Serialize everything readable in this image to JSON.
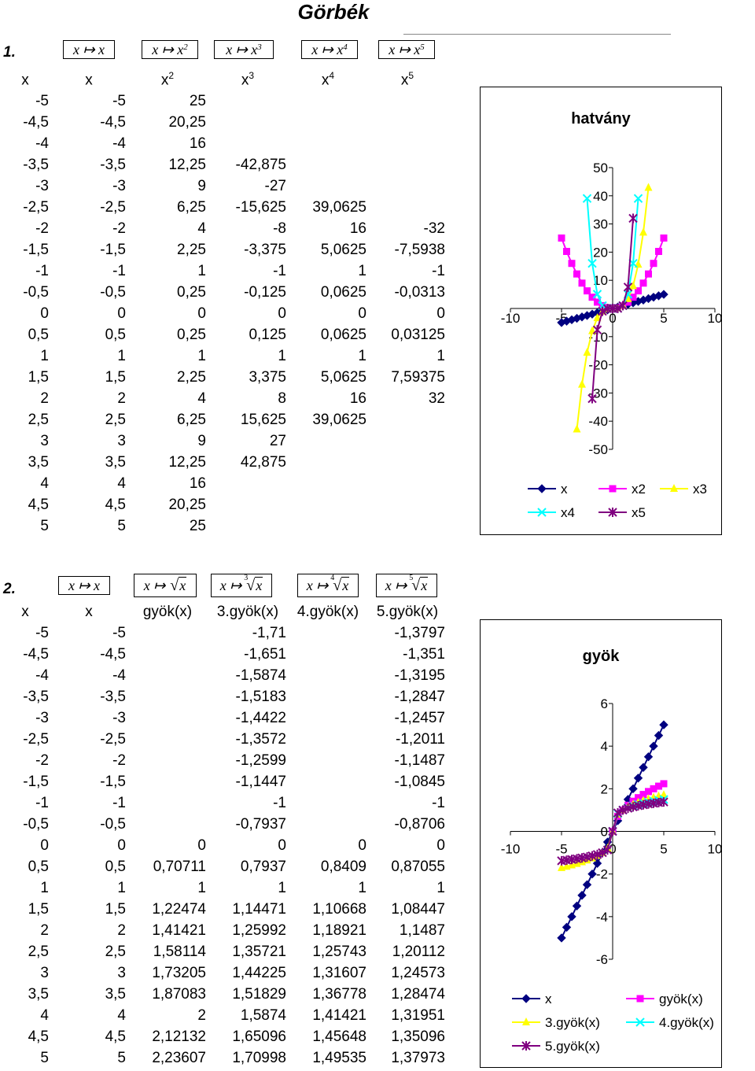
{
  "title": "Görbék",
  "section1": {
    "label": "1.",
    "formulas": [
      {
        "pre": "x ↦ x",
        "exp": ""
      },
      {
        "pre": "x ↦ x",
        "exp": "2"
      },
      {
        "pre": "x ↦ x",
        "exp": "3"
      },
      {
        "pre": "x ↦ x",
        "exp": "4"
      },
      {
        "pre": "x ↦ x",
        "exp": "5"
      }
    ],
    "headers": [
      {
        "base": "x",
        "sup": ""
      },
      {
        "base": "x",
        "sup": ""
      },
      {
        "base": "x",
        "sup": "2"
      },
      {
        "base": "x",
        "sup": "3"
      },
      {
        "base": "x",
        "sup": "4"
      },
      {
        "base": "x",
        "sup": "5"
      }
    ],
    "rows": [
      [
        "-5",
        "-5",
        "25",
        "",
        "",
        ""
      ],
      [
        "-4,5",
        "-4,5",
        "20,25",
        "",
        "",
        ""
      ],
      [
        "-4",
        "-4",
        "16",
        "",
        "",
        ""
      ],
      [
        "-3,5",
        "-3,5",
        "12,25",
        "-42,875",
        "",
        ""
      ],
      [
        "-3",
        "-3",
        "9",
        "-27",
        "",
        ""
      ],
      [
        "-2,5",
        "-2,5",
        "6,25",
        "-15,625",
        "39,0625",
        ""
      ],
      [
        "-2",
        "-2",
        "4",
        "-8",
        "16",
        "-32"
      ],
      [
        "-1,5",
        "-1,5",
        "2,25",
        "-3,375",
        "5,0625",
        "-7,5938"
      ],
      [
        "-1",
        "-1",
        "1",
        "-1",
        "1",
        "-1"
      ],
      [
        "-0,5",
        "-0,5",
        "0,25",
        "-0,125",
        "0,0625",
        "-0,0313"
      ],
      [
        "0",
        "0",
        "0",
        "0",
        "0",
        "0"
      ],
      [
        "0,5",
        "0,5",
        "0,25",
        "0,125",
        "0,0625",
        "0,03125"
      ],
      [
        "1",
        "1",
        "1",
        "1",
        "1",
        "1"
      ],
      [
        "1,5",
        "1,5",
        "2,25",
        "3,375",
        "5,0625",
        "7,59375"
      ],
      [
        "2",
        "2",
        "4",
        "8",
        "16",
        "32"
      ],
      [
        "2,5",
        "2,5",
        "6,25",
        "15,625",
        "39,0625",
        ""
      ],
      [
        "3",
        "3",
        "9",
        "27",
        "",
        ""
      ],
      [
        "3,5",
        "3,5",
        "12,25",
        "42,875",
        "",
        ""
      ],
      [
        "4",
        "4",
        "16",
        "",
        "",
        ""
      ],
      [
        "4,5",
        "4,5",
        "20,25",
        "",
        "",
        ""
      ],
      [
        "5",
        "5",
        "25",
        "",
        "",
        ""
      ]
    ]
  },
  "section2": {
    "label": "2.",
    "formulas": [
      {
        "pre": "x ↦ x",
        "idx": "",
        "root": false
      },
      {
        "pre": "x ↦ ",
        "idx": "",
        "root": true
      },
      {
        "pre": "x ↦ ",
        "idx": "3",
        "root": true
      },
      {
        "pre": "x ↦ ",
        "idx": "4",
        "root": true
      },
      {
        "pre": "x ↦ ",
        "idx": "5",
        "root": true
      }
    ],
    "root_arg": "x",
    "headers": [
      "x",
      "x",
      "gyök(x)",
      "3.gyök(x)",
      "4.gyök(x)",
      "5.gyök(x)"
    ],
    "rows": [
      [
        "-5",
        "-5",
        "",
        "-1,71",
        "",
        "-1,3797"
      ],
      [
        "-4,5",
        "-4,5",
        "",
        "-1,651",
        "",
        "-1,351"
      ],
      [
        "-4",
        "-4",
        "",
        "-1,5874",
        "",
        "-1,3195"
      ],
      [
        "-3,5",
        "-3,5",
        "",
        "-1,5183",
        "",
        "-1,2847"
      ],
      [
        "-3",
        "-3",
        "",
        "-1,4422",
        "",
        "-1,2457"
      ],
      [
        "-2,5",
        "-2,5",
        "",
        "-1,3572",
        "",
        "-1,2011"
      ],
      [
        "-2",
        "-2",
        "",
        "-1,2599",
        "",
        "-1,1487"
      ],
      [
        "-1,5",
        "-1,5",
        "",
        "-1,1447",
        "",
        "-1,0845"
      ],
      [
        "-1",
        "-1",
        "",
        "-1",
        "",
        "-1"
      ],
      [
        "-0,5",
        "-0,5",
        "",
        "-0,7937",
        "",
        "-0,8706"
      ],
      [
        "0",
        "0",
        "0",
        "0",
        "0",
        "0"
      ],
      [
        "0,5",
        "0,5",
        "0,70711",
        "0,7937",
        "0,8409",
        "0,87055"
      ],
      [
        "1",
        "1",
        "1",
        "1",
        "1",
        "1"
      ],
      [
        "1,5",
        "1,5",
        "1,22474",
        "1,14471",
        "1,10668",
        "1,08447"
      ],
      [
        "2",
        "2",
        "1,41421",
        "1,25992",
        "1,18921",
        "1,1487"
      ],
      [
        "2,5",
        "2,5",
        "1,58114",
        "1,35721",
        "1,25743",
        "1,20112"
      ],
      [
        "3",
        "3",
        "1,73205",
        "1,44225",
        "1,31607",
        "1,24573"
      ],
      [
        "3,5",
        "3,5",
        "1,87083",
        "1,51829",
        "1,36778",
        "1,28474"
      ],
      [
        "4",
        "4",
        "2",
        "1,5874",
        "1,41421",
        "1,31951"
      ],
      [
        "4,5",
        "4,5",
        "2,12132",
        "1,65096",
        "1,45648",
        "1,35096"
      ],
      [
        "5",
        "5",
        "2,23607",
        "1,70998",
        "1,49535",
        "1,37973"
      ]
    ]
  },
  "chart_data": [
    {
      "type": "line",
      "title": "hatvány",
      "xlim": [
        -10,
        10
      ],
      "ylim": [
        -50,
        50
      ],
      "x_ticks": [
        -10,
        -5,
        0,
        5,
        10
      ],
      "y_ticks": [
        -50,
        -40,
        -30,
        -20,
        -10,
        0,
        10,
        20,
        30,
        40,
        50
      ],
      "legend_position": "bottom",
      "series": [
        {
          "name": "x",
          "color": "#000080",
          "marker": "diamond",
          "x": [
            -5,
            -4.5,
            -4,
            -3.5,
            -3,
            -2.5,
            -2,
            -1.5,
            -1,
            -0.5,
            0,
            0.5,
            1,
            1.5,
            2,
            2.5,
            3,
            3.5,
            4,
            4.5,
            5
          ],
          "y": [
            -5,
            -4.5,
            -4,
            -3.5,
            -3,
            -2.5,
            -2,
            -1.5,
            -1,
            -0.5,
            0,
            0.5,
            1,
            1.5,
            2,
            2.5,
            3,
            3.5,
            4,
            4.5,
            5
          ]
        },
        {
          "name": "x2",
          "color": "#FF00FF",
          "marker": "square",
          "x": [
            -5,
            -4.5,
            -4,
            -3.5,
            -3,
            -2.5,
            -2,
            -1.5,
            -1,
            -0.5,
            0,
            0.5,
            1,
            1.5,
            2,
            2.5,
            3,
            3.5,
            4,
            4.5,
            5
          ],
          "y": [
            25,
            20.25,
            16,
            12.25,
            9,
            6.25,
            4,
            2.25,
            1,
            0.25,
            0,
            0.25,
            1,
            2.25,
            4,
            6.25,
            9,
            12.25,
            16,
            20.25,
            25
          ]
        },
        {
          "name": "x3",
          "color": "#FFFF00",
          "marker": "triangle",
          "x": [
            -3.5,
            -3,
            -2.5,
            -2,
            -1.5,
            -1,
            -0.5,
            0,
            0.5,
            1,
            1.5,
            2,
            2.5,
            3,
            3.5
          ],
          "y": [
            -42.875,
            -27,
            -15.625,
            -8,
            -3.375,
            -1,
            -0.125,
            0,
            0.125,
            1,
            3.375,
            8,
            15.625,
            27,
            42.875
          ]
        },
        {
          "name": "x4",
          "color": "#00FFFF",
          "marker": "x",
          "x": [
            -2.5,
            -2,
            -1.5,
            -1,
            -0.5,
            0,
            0.5,
            1,
            1.5,
            2,
            2.5
          ],
          "y": [
            39.0625,
            16,
            5.0625,
            1,
            0.0625,
            0,
            0.0625,
            1,
            5.0625,
            16,
            39.0625
          ]
        },
        {
          "name": "x5",
          "color": "#800080",
          "marker": "star",
          "x": [
            -2,
            -1.5,
            -1,
            -0.5,
            0,
            0.5,
            1,
            1.5,
            2
          ],
          "y": [
            -32,
            -7.5938,
            -1,
            -0.0313,
            0,
            0.03125,
            1,
            7.59375,
            32
          ]
        }
      ]
    },
    {
      "type": "line",
      "title": "gyök",
      "xlim": [
        -10,
        10
      ],
      "ylim": [
        -6,
        6
      ],
      "x_ticks": [
        -10,
        -5,
        0,
        5,
        10
      ],
      "y_ticks": [
        -6,
        -4,
        -2,
        0,
        2,
        4,
        6
      ],
      "legend_position": "bottom",
      "series": [
        {
          "name": "x",
          "color": "#000080",
          "marker": "diamond",
          "x": [
            -5,
            -4.5,
            -4,
            -3.5,
            -3,
            -2.5,
            -2,
            -1.5,
            -1,
            -0.5,
            0,
            0.5,
            1,
            1.5,
            2,
            2.5,
            3,
            3.5,
            4,
            4.5,
            5
          ],
          "y": [
            -5,
            -4.5,
            -4,
            -3.5,
            -3,
            -2.5,
            -2,
            -1.5,
            -1,
            -0.5,
            0,
            0.5,
            1,
            1.5,
            2,
            2.5,
            3,
            3.5,
            4,
            4.5,
            5
          ]
        },
        {
          "name": "gyök(x)",
          "color": "#FF00FF",
          "marker": "square",
          "x": [
            0,
            0.5,
            1,
            1.5,
            2,
            2.5,
            3,
            3.5,
            4,
            4.5,
            5
          ],
          "y": [
            0,
            0.70711,
            1,
            1.22474,
            1.41421,
            1.58114,
            1.73205,
            1.87083,
            2,
            2.12132,
            2.23607
          ]
        },
        {
          "name": "3.gyök(x)",
          "color": "#FFFF00",
          "marker": "triangle",
          "x": [
            -5,
            -4.5,
            -4,
            -3.5,
            -3,
            -2.5,
            -2,
            -1.5,
            -1,
            -0.5,
            0,
            0.5,
            1,
            1.5,
            2,
            2.5,
            3,
            3.5,
            4,
            4.5,
            5
          ],
          "y": [
            -1.71,
            -1.651,
            -1.5874,
            -1.5183,
            -1.4422,
            -1.3572,
            -1.2599,
            -1.1447,
            -1,
            -0.7937,
            0,
            0.7937,
            1,
            1.14471,
            1.25992,
            1.35721,
            1.44225,
            1.51829,
            1.5874,
            1.65096,
            1.70998
          ]
        },
        {
          "name": "4.gyök(x)",
          "color": "#00FFFF",
          "marker": "x",
          "x": [
            0,
            0.5,
            1,
            1.5,
            2,
            2.5,
            3,
            3.5,
            4,
            4.5,
            5
          ],
          "y": [
            0,
            0.8409,
            1,
            1.10668,
            1.18921,
            1.25743,
            1.31607,
            1.36778,
            1.41421,
            1.45648,
            1.49535
          ]
        },
        {
          "name": "5.gyök(x)",
          "color": "#800080",
          "marker": "star",
          "x": [
            -5,
            -4.5,
            -4,
            -3.5,
            -3,
            -2.5,
            -2,
            -1.5,
            -1,
            -0.5,
            0,
            0.5,
            1,
            1.5,
            2,
            2.5,
            3,
            3.5,
            4,
            4.5,
            5
          ],
          "y": [
            -1.3797,
            -1.351,
            -1.3195,
            -1.2847,
            -1.2457,
            -1.2011,
            -1.1487,
            -1.0845,
            -1,
            -0.8706,
            0,
            0.87055,
            1,
            1.08447,
            1.1487,
            1.20112,
            1.24573,
            1.28474,
            1.31951,
            1.35096,
            1.37973
          ]
        }
      ]
    }
  ]
}
